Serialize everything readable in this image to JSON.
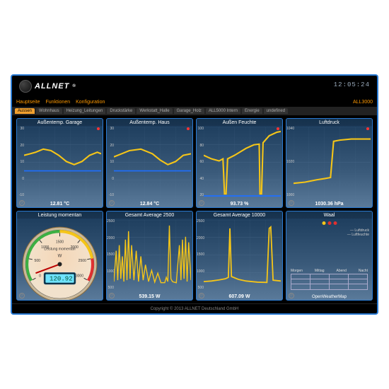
{
  "brand": "ALLNET",
  "clock": "12:05:24",
  "menu": {
    "items": [
      "Hauptseite",
      "Funktionen",
      "Konfiguration"
    ],
    "right": "ALL3000"
  },
  "tabs": [
    "Aussen",
    "Wohnhaus",
    "Heizung_Leitungen",
    "Druckstärke",
    "Werkstatt_Halle",
    "Garage_Holz",
    "ALL5000 Intern",
    "Energie",
    "undefined"
  ],
  "active_tab": 0,
  "footer": "Copyright © 2013 ALLNET Deutschland GmbH",
  "colors": {
    "frame": "#2a7bd4",
    "panel_grad_top": "#1a3a5a",
    "panel_grad_bot": "#5a7a9a",
    "series_yellow": "#f5c518",
    "series_blue": "#1e6fff",
    "series_red": "#e03030",
    "accent_orange": "#f0a030",
    "grid": "#6a8aaa"
  },
  "panels": [
    {
      "id": "garage_temp",
      "title": "Außentemp. Garage",
      "value": "12.81 °C",
      "type": "line",
      "ylim": [
        -15,
        30
      ],
      "yticks": [
        30,
        20,
        10,
        0,
        -10
      ],
      "red_dot": true,
      "series": [
        {
          "color": "#f5c518",
          "width": 1.5,
          "pts": [
            [
              0,
              12
            ],
            [
              8,
              13
            ],
            [
              15,
              14
            ],
            [
              25,
              16
            ],
            [
              35,
              15
            ],
            [
              45,
              12
            ],
            [
              55,
              8
            ],
            [
              65,
              6
            ],
            [
              75,
              8
            ],
            [
              85,
              12
            ],
            [
              95,
              14
            ],
            [
              100,
              13
            ]
          ]
        },
        {
          "color": "#1e6fff",
          "width": 1.2,
          "pts": [
            [
              0,
              2
            ],
            [
              100,
              2
            ]
          ]
        }
      ]
    },
    {
      "id": "haus_temp",
      "title": "Außentemp. Haus",
      "value": "12.84 °C",
      "type": "line",
      "ylim": [
        -15,
        30
      ],
      "yticks": [
        30,
        20,
        10,
        0,
        -10
      ],
      "red_dot": true,
      "series": [
        {
          "color": "#f5c518",
          "width": 1.5,
          "pts": [
            [
              0,
              11
            ],
            [
              10,
              13
            ],
            [
              20,
              15
            ],
            [
              35,
              16
            ],
            [
              50,
              13
            ],
            [
              60,
              9
            ],
            [
              70,
              6
            ],
            [
              80,
              8
            ],
            [
              90,
              12
            ],
            [
              100,
              13
            ]
          ]
        },
        {
          "color": "#1e6fff",
          "width": 1.2,
          "pts": [
            [
              0,
              2
            ],
            [
              100,
              2
            ]
          ]
        }
      ]
    },
    {
      "id": "feuchte",
      "title": "Außen Feuchte",
      "value": "93.73 %",
      "type": "line",
      "ylim": [
        0,
        100
      ],
      "yticks": [
        100,
        80,
        60,
        40,
        20
      ],
      "red_dot": true,
      "series": [
        {
          "color": "#f5c518",
          "width": 1.5,
          "pts": [
            [
              0,
              60
            ],
            [
              10,
              55
            ],
            [
              20,
              52
            ],
            [
              25,
              55
            ],
            [
              27,
              5
            ],
            [
              29,
              5
            ],
            [
              31,
              55
            ],
            [
              40,
              60
            ],
            [
              55,
              70
            ],
            [
              65,
              75
            ],
            [
              72,
              76
            ],
            [
              73,
              5
            ],
            [
              75,
              5
            ],
            [
              77,
              78
            ],
            [
              85,
              88
            ],
            [
              95,
              93
            ],
            [
              100,
              94
            ]
          ]
        },
        {
          "color": "#1e6fff",
          "width": 1.2,
          "pts": [
            [
              0,
              2
            ],
            [
              100,
              2
            ]
          ]
        }
      ]
    },
    {
      "id": "luftdruck",
      "title": "Luftdruck",
      "value": "1030.36 hPa",
      "type": "line",
      "ylim": [
        980,
        1040
      ],
      "yticks": [
        1040,
        1020,
        1000
      ],
      "red_dot": true,
      "series": [
        {
          "color": "#f5c518",
          "width": 1.5,
          "pts": [
            [
              0,
              992
            ],
            [
              15,
              993
            ],
            [
              30,
              995
            ],
            [
              40,
              996
            ],
            [
              48,
              997
            ],
            [
              52,
              1028
            ],
            [
              60,
              1029
            ],
            [
              75,
              1030
            ],
            [
              90,
              1030
            ],
            [
              100,
              1030
            ]
          ]
        }
      ]
    },
    {
      "id": "leistung",
      "title": "Leistung momentan",
      "value": "",
      "type": "gauge",
      "gauge": {
        "label": "Leistung momentan",
        "unit": "W",
        "min": 0,
        "max": 3000,
        "value": 120.92,
        "ticks": [
          0,
          500,
          1000,
          1500,
          2000,
          2500,
          3000
        ],
        "face_top": "#f5d7b8",
        "face_bot": "#f2e2cc",
        "arc_green": "#3cb043",
        "arc_yellow": "#f5c518",
        "arc_red": "#e03030",
        "lcd_bg": "#6fe3ff",
        "lcd_text": "120.92"
      }
    },
    {
      "id": "avg2500",
      "title": "Gesamt Average 2500",
      "value": "539.15 W",
      "type": "line",
      "ylim": [
        0,
        2500
      ],
      "yticks": [
        2500,
        2000,
        1500,
        1000,
        500
      ],
      "series": [
        {
          "color": "#f5c518",
          "width": 1,
          "pts": [
            [
              0,
              300
            ],
            [
              3,
              1400
            ],
            [
              5,
              350
            ],
            [
              7,
              1600
            ],
            [
              9,
              400
            ],
            [
              11,
              1200
            ],
            [
              13,
              300
            ],
            [
              15,
              1800
            ],
            [
              17,
              350
            ],
            [
              19,
              2100
            ],
            [
              21,
              400
            ],
            [
              23,
              1600
            ],
            [
              26,
              350
            ],
            [
              29,
              1400
            ],
            [
              32,
              300
            ],
            [
              35,
              1200
            ],
            [
              38,
              350
            ],
            [
              41,
              900
            ],
            [
              45,
              300
            ],
            [
              49,
              700
            ],
            [
              53,
              280
            ],
            [
              57,
              600
            ],
            [
              61,
              260
            ],
            [
              64,
              260
            ],
            [
              66,
              260
            ],
            [
              68,
              450
            ],
            [
              70,
              300
            ],
            [
              72,
              2300
            ],
            [
              74,
              400
            ],
            [
              76,
              300
            ],
            [
              78,
              280
            ],
            [
              81,
              260
            ],
            [
              85,
              1600
            ],
            [
              87,
              350
            ],
            [
              89,
              1800
            ],
            [
              91,
              400
            ],
            [
              93,
              1900
            ],
            [
              95,
              300
            ],
            [
              97,
              1700
            ],
            [
              100,
              350
            ]
          ]
        }
      ]
    },
    {
      "id": "avg10000",
      "title": "Gesamt Average 10000",
      "value": "607.09 W",
      "type": "line",
      "ylim": [
        0,
        2500
      ],
      "yticks": [
        2500,
        2000,
        1500,
        1000,
        500
      ],
      "series": [
        {
          "color": "#f5c518",
          "width": 1.3,
          "pts": [
            [
              0,
              300
            ],
            [
              10,
              320
            ],
            [
              20,
              360
            ],
            [
              28,
              400
            ],
            [
              32,
              450
            ],
            [
              34,
              2200
            ],
            [
              36,
              480
            ],
            [
              45,
              380
            ],
            [
              55,
              320
            ],
            [
              70,
              280
            ],
            [
              82,
              270
            ],
            [
              85,
              2200
            ],
            [
              87,
              2250
            ],
            [
              90,
              350
            ],
            [
              100,
              320
            ]
          ]
        }
      ]
    },
    {
      "id": "waal",
      "title": "Waal",
      "value": "",
      "type": "waal",
      "waal": {
        "dots": [
          "#f5c518",
          "#e03030",
          "#e03030"
        ],
        "legend": [
          "Luftdruck",
          "Luftfeuchte"
        ],
        "cols": [
          "Morgen",
          "Mittag",
          "Abend",
          "Nacht"
        ],
        "rows": 3,
        "source": "OpenWeatherMap"
      }
    }
  ]
}
